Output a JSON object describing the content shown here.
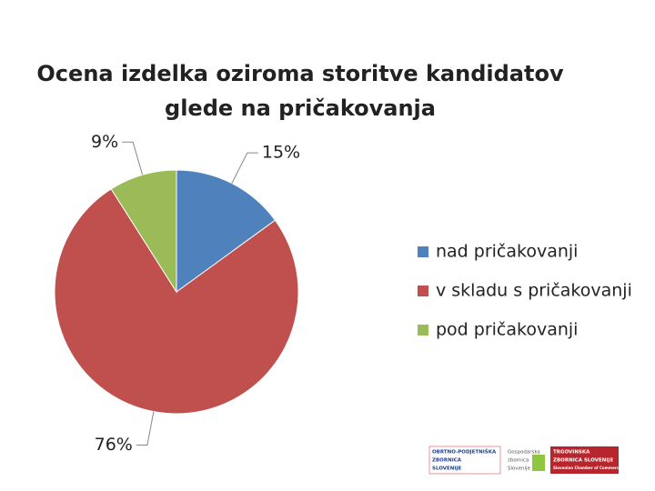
{
  "chart_data": {
    "type": "pie",
    "title": "Ocena izdelka oziroma storitve kandidatov glede na pričakovanja",
    "categories": [
      "nad pričakovanji",
      "v skladu s pričakovanji",
      "pod  pričakovanji"
    ],
    "values": [
      15,
      76,
      9
    ],
    "value_labels": [
      "15%",
      "76%",
      "9%"
    ],
    "colors": [
      "#4f81bd",
      "#c0504d",
      "#9bbb59"
    ],
    "legend": "right"
  },
  "logos": [
    {
      "lines": [
        "OBRTNO-PODJETNIŠKA",
        "ZBORNICA",
        "SLOVENIJE"
      ]
    },
    {
      "lines": [
        "Gospodarska",
        "zbornica",
        "Slovenije"
      ]
    },
    {
      "lines": [
        "TRGOVINSKA",
        "ZBORNICA SLOVENIJE",
        "Slovenian Chamber of Commerce"
      ]
    }
  ]
}
